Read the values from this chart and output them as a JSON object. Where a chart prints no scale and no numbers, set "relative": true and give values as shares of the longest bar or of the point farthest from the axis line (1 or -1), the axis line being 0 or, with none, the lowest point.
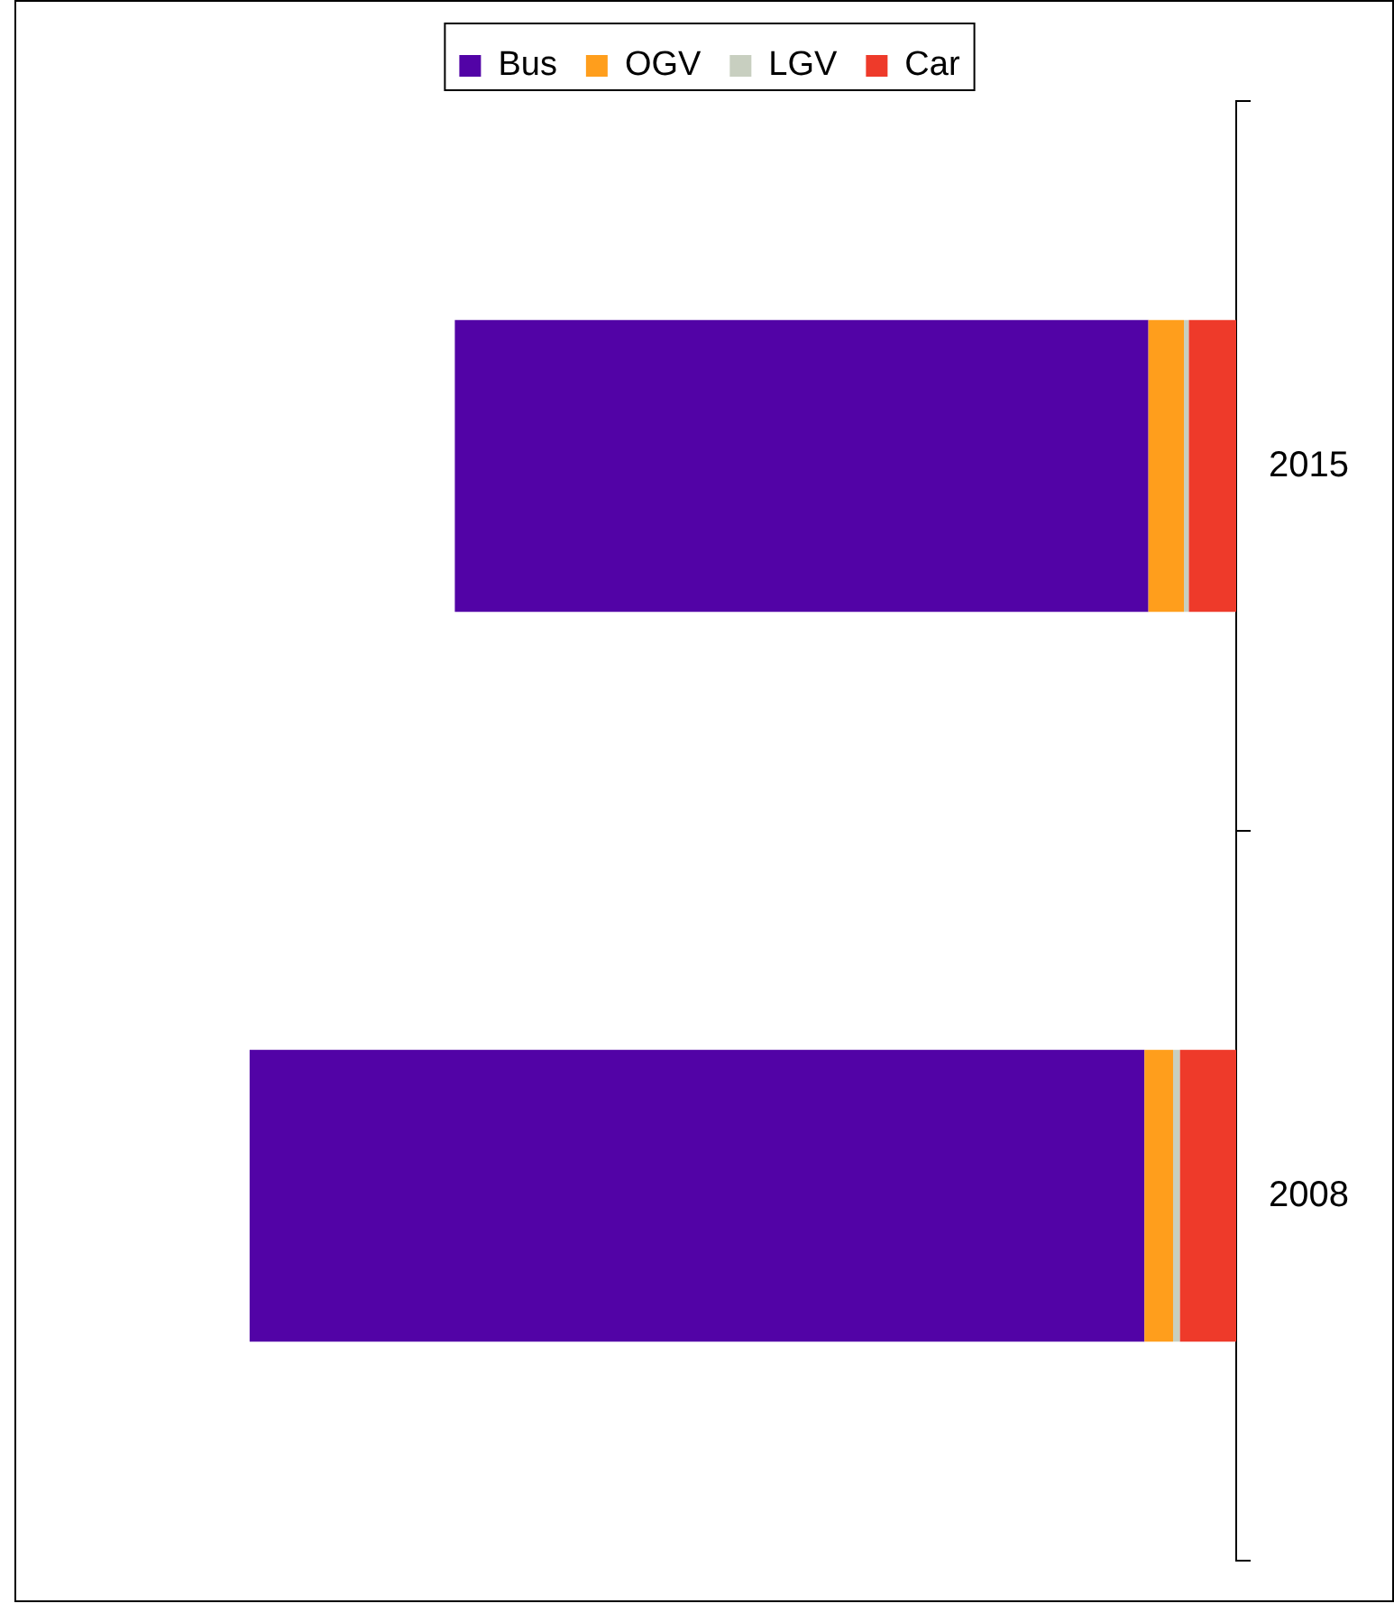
{
  "chart_data": {
    "type": "bar",
    "stacked": true,
    "relative": true,
    "orientation": "horizontal",
    "grid": false,
    "legend": "top",
    "categories": [
      "2015",
      "2008"
    ],
    "series": [
      {
        "name": "Car",
        "color": "#ee3a2a",
        "values": [
          0.048,
          0.057
        ]
      },
      {
        "name": "LGV",
        "color": "#c8cfc0",
        "values": [
          0.005,
          0.007
        ]
      },
      {
        "name": "OGV",
        "color": "#ff9e1c",
        "values": [
          0.036,
          0.029
        ]
      },
      {
        "name": "Bus",
        "color": "#5203a6",
        "values": [
          0.703,
          0.907
        ]
      }
    ]
  }
}
